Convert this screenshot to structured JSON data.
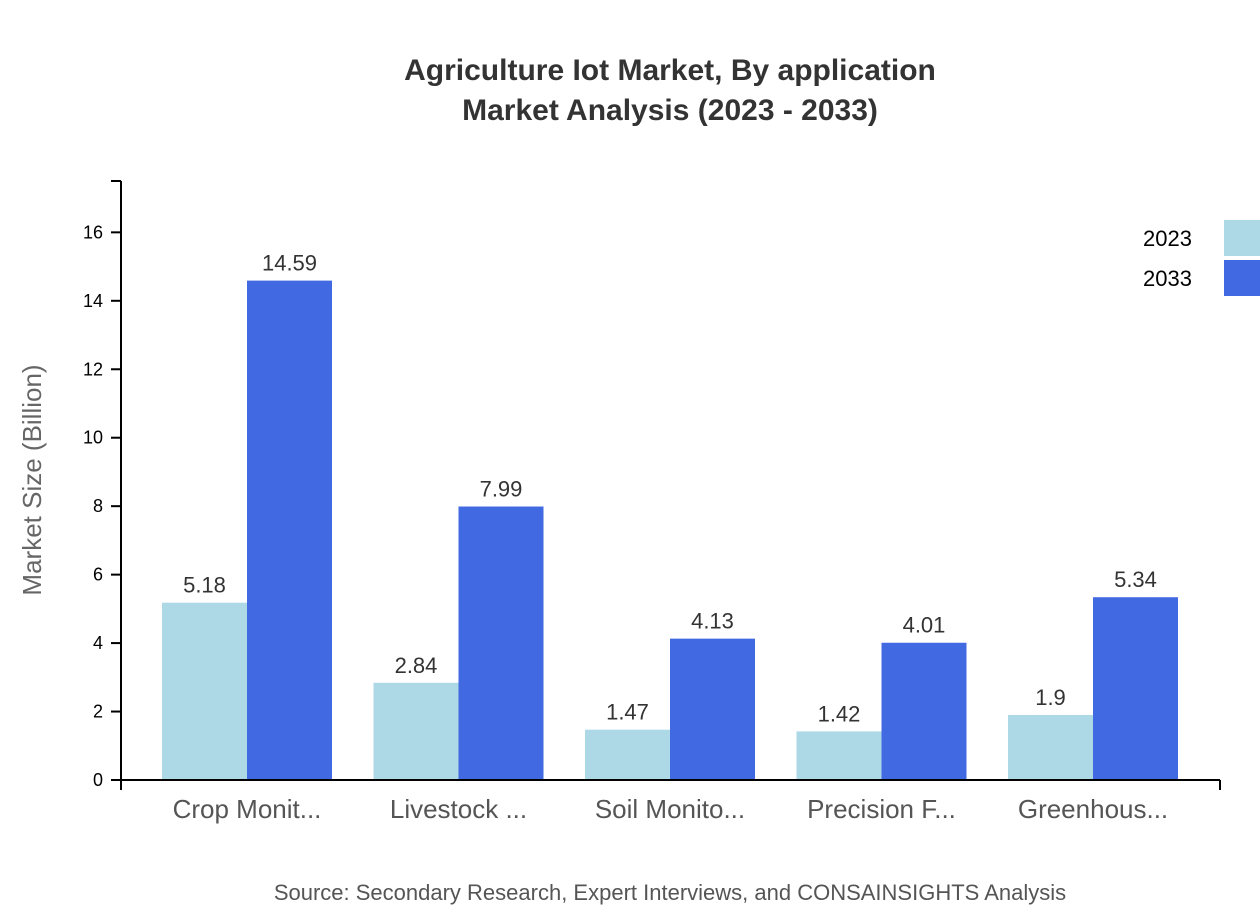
{
  "chart_data": {
    "type": "bar",
    "title": "Agriculture Iot Market, By application",
    "subtitle": "Market Analysis (2023 - 2033)",
    "xlabel": "",
    "ylabel": "Market Size (Billion)",
    "ylim": [
      0,
      17.5
    ],
    "yticks": [
      0,
      2,
      4,
      6,
      8,
      10,
      12,
      14,
      16
    ],
    "categories": [
      "Crop Monit...",
      "Livestock ...",
      "Soil Monito...",
      "Precision F...",
      "Greenhous..."
    ],
    "series": [
      {
        "name": "2023",
        "color": "#add8e6",
        "values": [
          5.18,
          2.84,
          1.47,
          1.42,
          1.9
        ]
      },
      {
        "name": "2033",
        "color": "#4169e1",
        "values": [
          14.59,
          7.99,
          4.13,
          4.01,
          5.34
        ]
      }
    ],
    "grid": false,
    "legend_position": "top-right",
    "source": "Source: Secondary Research, Expert Interviews, and CONSAINSIGHTS Analysis"
  }
}
